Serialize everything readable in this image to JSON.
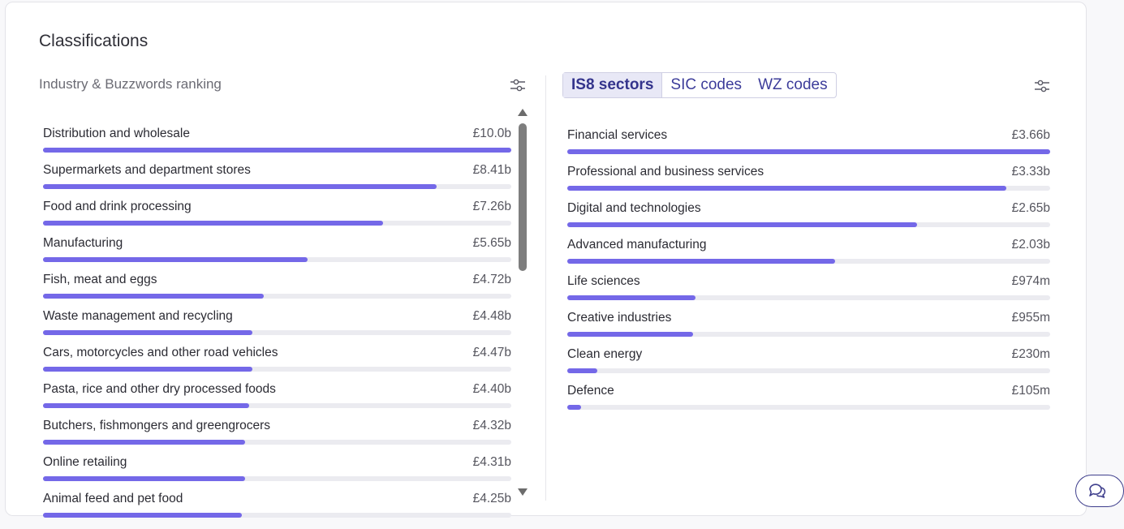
{
  "card": {
    "title": "Classifications"
  },
  "left": {
    "subtitle": "Industry & Buzzwords ranking",
    "filter_icon": "sliders-icon",
    "items": [
      {
        "label": "Distribution and wholesale",
        "value": "£10.0b",
        "fraction": 1.0
      },
      {
        "label": "Supermarkets and department stores",
        "value": "£8.41b",
        "fraction": 0.841
      },
      {
        "label": "Food and drink processing",
        "value": "£7.26b",
        "fraction": 0.726
      },
      {
        "label": "Manufacturing",
        "value": "£5.65b",
        "fraction": 0.565
      },
      {
        "label": "Fish, meat and eggs",
        "value": "£4.72b",
        "fraction": 0.472
      },
      {
        "label": "Waste management and recycling",
        "value": "£4.48b",
        "fraction": 0.448
      },
      {
        "label": "Cars, motorcycles and other road vehicles",
        "value": "£4.47b",
        "fraction": 0.447
      },
      {
        "label": "Pasta, rice and other dry processed foods",
        "value": "£4.40b",
        "fraction": 0.44
      },
      {
        "label": "Butchers, fishmongers and greengrocers",
        "value": "£4.32b",
        "fraction": 0.432
      },
      {
        "label": "Online retailing",
        "value": "£4.31b",
        "fraction": 0.431
      },
      {
        "label": "Animal feed and pet food",
        "value": "£4.25b",
        "fraction": 0.425
      }
    ]
  },
  "right": {
    "tabs": [
      {
        "label": "IS8 sectors",
        "active": true
      },
      {
        "label": "SIC codes",
        "active": false
      },
      {
        "label": "WZ codes",
        "active": false
      }
    ],
    "filter_icon": "sliders-icon",
    "items": [
      {
        "label": "Financial services",
        "value": "£3.66b",
        "fraction": 1.0
      },
      {
        "label": "Professional and business services",
        "value": "£3.33b",
        "fraction": 0.91
      },
      {
        "label": "Digital and technologies",
        "value": "£2.65b",
        "fraction": 0.724
      },
      {
        "label": "Advanced manufacturing",
        "value": "£2.03b",
        "fraction": 0.555
      },
      {
        "label": "Life sciences",
        "value": "£974m",
        "fraction": 0.266
      },
      {
        "label": "Creative industries",
        "value": "£955m",
        "fraction": 0.261
      },
      {
        "label": "Clean energy",
        "value": "£230m",
        "fraction": 0.063
      },
      {
        "label": "Defence",
        "value": "£105m",
        "fraction": 0.029
      }
    ]
  },
  "chat_icon": "chat-bubbles-icon",
  "colors": {
    "bar": "#7468e8",
    "track": "#ebebf0",
    "tab_active_bg": "#e8e8f6",
    "tab_text": "#3c3c9a"
  }
}
